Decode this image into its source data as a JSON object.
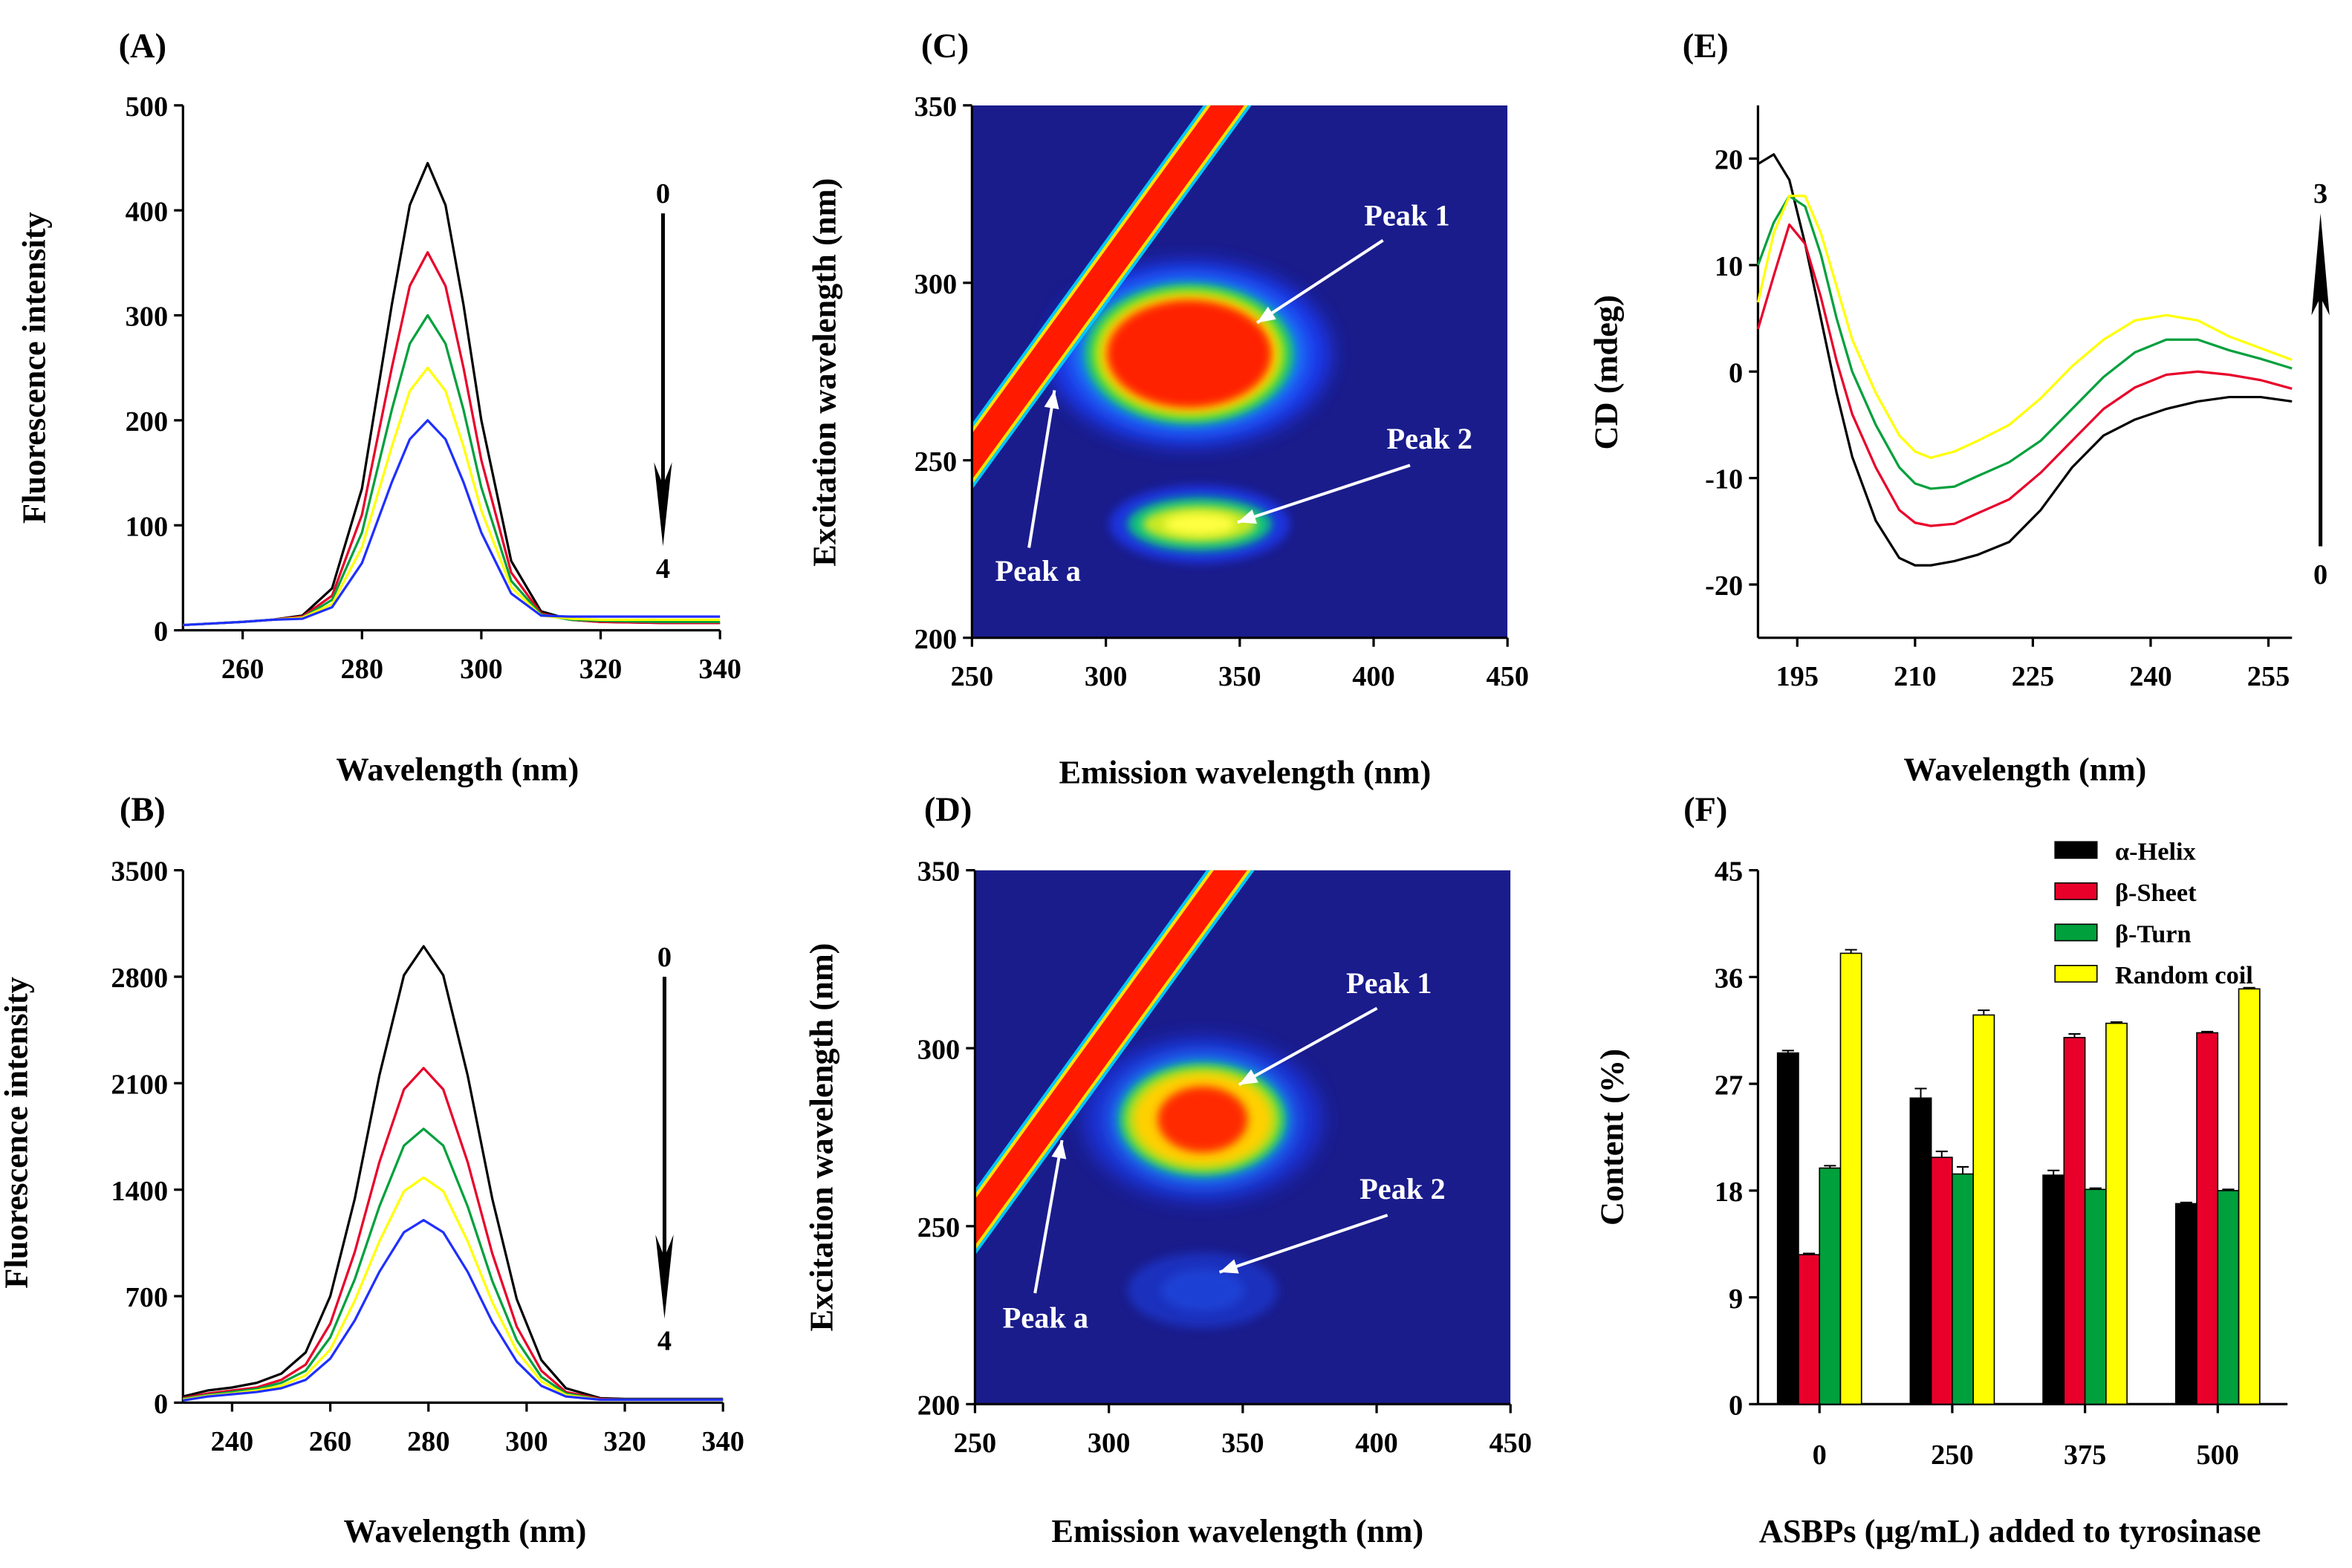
{
  "panels": {
    "A": {
      "label": "(A)"
    },
    "B": {
      "label": "(B)"
    },
    "C": {
      "label": "(C)"
    },
    "D": {
      "label": "(D)"
    },
    "E": {
      "label": "(E)"
    },
    "F": {
      "label": "(F)"
    }
  },
  "colors": {
    "s0": "#000000",
    "s1": "#e8002a",
    "s2": "#00a03c",
    "s3": "#ffff00",
    "s4": "#1f2fff",
    "heat_bg": "#1a1c8c"
  },
  "chart_data": [
    {
      "id": "A",
      "type": "line",
      "xlabel": "Wavelength (nm)",
      "ylabel": "Fluorescence intensity",
      "xlim": [
        250,
        340
      ],
      "ylim": [
        0,
        500
      ],
      "xticks": [
        260,
        280,
        300,
        320,
        340
      ],
      "yticks": [
        0,
        100,
        200,
        300,
        400,
        500
      ],
      "arrow": {
        "start": "0",
        "end": "4",
        "direction": "down"
      },
      "x": [
        250,
        260,
        265,
        270,
        275,
        280,
        285,
        288,
        291,
        294,
        297,
        300,
        305,
        310,
        315,
        320,
        330,
        340
      ],
      "series": [
        {
          "name": "0",
          "color": "#000000",
          "values": [
            5,
            8,
            10,
            14,
            40,
            135,
            310,
            405,
            445,
            405,
            310,
            200,
            66,
            18,
            10,
            8,
            7,
            7
          ]
        },
        {
          "name": "1",
          "color": "#e8002a",
          "values": [
            5,
            8,
            10,
            13,
            33,
            110,
            250,
            328,
            360,
            328,
            250,
            162,
            55,
            16,
            10,
            8,
            7,
            7
          ]
        },
        {
          "name": "2",
          "color": "#00a03c",
          "values": [
            5,
            8,
            10,
            12,
            29,
            93,
            210,
            273,
            300,
            273,
            210,
            136,
            47,
            15,
            10,
            9,
            8,
            8
          ]
        },
        {
          "name": "3",
          "color": "#ffff00",
          "values": [
            5,
            8,
            10,
            12,
            25,
            79,
            175,
            228,
            250,
            228,
            175,
            114,
            41,
            14,
            11,
            10,
            10,
            10
          ]
        },
        {
          "name": "4",
          "color": "#1f2fff",
          "values": [
            5,
            8,
            10,
            11,
            22,
            64,
            141,
            182,
            200,
            182,
            141,
            93,
            35,
            14,
            13,
            13,
            13,
            13
          ]
        }
      ]
    },
    {
      "id": "B",
      "type": "line",
      "xlabel": "Wavelength (nm)",
      "ylabel": "Fluorescence intensity",
      "xlim": [
        230,
        340
      ],
      "ylim": [
        0,
        3500
      ],
      "xticks": [
        240,
        260,
        280,
        300,
        320,
        340
      ],
      "yticks": [
        0,
        700,
        1400,
        2100,
        2800,
        3500
      ],
      "arrow": {
        "start": "0",
        "end": "4",
        "direction": "down"
      },
      "x": [
        230,
        235,
        240,
        245,
        250,
        255,
        260,
        265,
        270,
        275,
        279,
        283,
        288,
        293,
        298,
        303,
        308,
        315,
        320,
        340
      ],
      "series": [
        {
          "name": "0",
          "color": "#000000",
          "values": [
            40,
            80,
            100,
            130,
            190,
            330,
            700,
            1340,
            2150,
            2810,
            3000,
            2810,
            2150,
            1340,
            680,
            280,
            95,
            30,
            25,
            25
          ]
        },
        {
          "name": "1",
          "color": "#e8002a",
          "values": [
            30,
            60,
            80,
            100,
            150,
            250,
            520,
            990,
            1580,
            2060,
            2200,
            2060,
            1580,
            980,
            500,
            210,
            70,
            25,
            20,
            20
          ]
        },
        {
          "name": "2",
          "color": "#00a03c",
          "values": [
            25,
            50,
            70,
            90,
            130,
            210,
            430,
            810,
            1290,
            1690,
            1800,
            1690,
            1290,
            800,
            410,
            170,
            60,
            20,
            20,
            20
          ]
        },
        {
          "name": "3",
          "color": "#ffff00",
          "values": [
            20,
            45,
            60,
            80,
            110,
            180,
            350,
            670,
            1060,
            1390,
            1480,
            1390,
            1060,
            660,
            340,
            140,
            50,
            20,
            20,
            20
          ]
        },
        {
          "name": "4",
          "color": "#1f2fff",
          "values": [
            15,
            40,
            55,
            70,
            95,
            150,
            290,
            540,
            860,
            1120,
            1200,
            1120,
            860,
            530,
            270,
            110,
            40,
            20,
            20,
            20
          ]
        }
      ]
    },
    {
      "id": "C",
      "type": "heatmap",
      "xlabel": "Emission wavelength (nm)",
      "ylabel": "Excitation wavelength (nm)",
      "xlim": [
        250,
        450
      ],
      "ylim": [
        200,
        350
      ],
      "xticks": [
        250,
        300,
        350,
        400,
        450
      ],
      "yticks": [
        200,
        250,
        300,
        350
      ],
      "peaks": [
        {
          "name": "Peak 1",
          "em": 330,
          "ex": 280,
          "intensity": "high"
        },
        {
          "name": "Peak 2",
          "em": 335,
          "ex": 232,
          "intensity": "medium"
        },
        {
          "name": "Peak a",
          "em": 280,
          "ex": 280,
          "intensity": "rayleigh"
        }
      ]
    },
    {
      "id": "D",
      "type": "heatmap",
      "xlabel": "Emission wavelength (nm)",
      "ylabel": "Excitation wavelength (nm)",
      "xlim": [
        250,
        450
      ],
      "ylim": [
        200,
        350
      ],
      "xticks": [
        250,
        300,
        350,
        400,
        450
      ],
      "yticks": [
        200,
        250,
        300,
        350
      ],
      "peaks": [
        {
          "name": "Peak 1",
          "em": 335,
          "ex": 280,
          "intensity": "medium-high"
        },
        {
          "name": "Peak 2",
          "em": 335,
          "ex": 232,
          "intensity": "low"
        },
        {
          "name": "Peak a",
          "em": 280,
          "ex": 280,
          "intensity": "rayleigh"
        }
      ]
    },
    {
      "id": "E",
      "type": "line",
      "xlabel": "Wavelength (nm)",
      "ylabel": "CD (mdeg)",
      "xlim": [
        190,
        258
      ],
      "ylim": [
        -25,
        25
      ],
      "xticks": [
        195,
        210,
        225,
        240,
        255
      ],
      "yticks": [
        20,
        10,
        0,
        -10,
        -20
      ],
      "arrow": {
        "start": "0",
        "end": "3",
        "direction": "up"
      },
      "x": [
        190,
        192,
        194,
        196,
        198,
        200,
        202,
        205,
        208,
        210,
        212,
        215,
        218,
        222,
        226,
        230,
        234,
        238,
        242,
        246,
        250,
        254,
        258
      ],
      "series": [
        {
          "name": "0",
          "color": "#000000",
          "values": [
            19.5,
            20.4,
            18,
            12,
            5,
            -2,
            -8,
            -14,
            -17.5,
            -18.2,
            -18.2,
            -17.8,
            -17.2,
            -16,
            -13,
            -9,
            -6,
            -4.5,
            -3.5,
            -2.8,
            -2.4,
            -2.4,
            -2.8
          ]
        },
        {
          "name": "1",
          "color": "#e8002a",
          "values": [
            4,
            9,
            13.8,
            12,
            7,
            1,
            -4,
            -9,
            -13,
            -14.2,
            -14.5,
            -14.3,
            -13.3,
            -12,
            -9.5,
            -6.5,
            -3.5,
            -1.5,
            -0.3,
            0,
            -0.3,
            -0.8,
            -1.6
          ]
        },
        {
          "name": "2",
          "color": "#00a03c",
          "values": [
            10,
            14,
            16.5,
            15.5,
            11,
            5,
            0,
            -5,
            -9,
            -10.5,
            -11,
            -10.8,
            -9.8,
            -8.5,
            -6.5,
            -3.5,
            -0.5,
            1.8,
            3,
            3,
            2,
            1.2,
            0.3
          ]
        },
        {
          "name": "3",
          "color": "#ffff00",
          "values": [
            6.5,
            13,
            16.5,
            16.5,
            13,
            8,
            3,
            -2,
            -6,
            -7.5,
            -8.1,
            -7.5,
            -6.5,
            -5,
            -2.5,
            0.5,
            3,
            4.8,
            5.3,
            4.8,
            3.3,
            2.2,
            1.1
          ]
        }
      ]
    },
    {
      "id": "F",
      "type": "bar",
      "xlabel": "ASBPs (μg/mL) added to tyrosinase",
      "ylabel": "Content (%)",
      "ylim": [
        0,
        45
      ],
      "yticks": [
        0,
        9,
        18,
        27,
        36,
        45
      ],
      "categories": [
        "0",
        "250",
        "375",
        "500"
      ],
      "legend_position": "top-right",
      "series": [
        {
          "name": "α-Helix",
          "color": "#000000",
          "values": [
            29.6,
            25.8,
            19.3,
            16.9
          ],
          "errors": [
            0.2,
            0.8,
            0.4,
            0.1
          ]
        },
        {
          "name": "β-Sheet",
          "color": "#e8002a",
          "values": [
            12.6,
            20.8,
            30.9,
            31.3
          ],
          "errors": [
            0.1,
            0.5,
            0.3,
            0.1
          ]
        },
        {
          "name": "β-Turn",
          "color": "#00a03c",
          "values": [
            19.9,
            19.4,
            18.1,
            18.0
          ],
          "errors": [
            0.2,
            0.6,
            0.1,
            0.1
          ]
        },
        {
          "name": "Random coil",
          "color": "#ffff00",
          "values": [
            38.0,
            32.8,
            32.1,
            35.0
          ],
          "errors": [
            0.3,
            0.4,
            0.1,
            0.1
          ]
        }
      ]
    }
  ]
}
